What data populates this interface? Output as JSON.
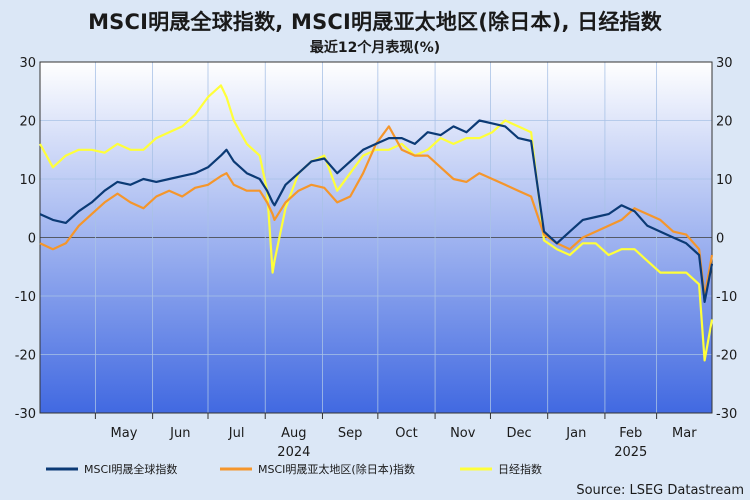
{
  "title": "MSCI明晟全球指数, MSCI明晟亚太地区(除日本), 日经指数",
  "subtitle": "最近12个月表现(%)",
  "source": "Source: LSEG Datastream",
  "colors": {
    "background": "#dbe7f6",
    "plot_top": "#ffffff",
    "plot_bottom": "#4169e1",
    "global": "#0b3a75",
    "apac": "#f5962b",
    "nikkei": "#ffff3a"
  },
  "chart_data": {
    "type": "line",
    "title": "MSCI明晟全球指数, MSCI明晟亚太地区(除日本), 日经指数",
    "subtitle": "最近12个月表现(%)",
    "ylim": [
      -30,
      30
    ],
    "yticks": [
      -30,
      -20,
      -10,
      0,
      10,
      20,
      30
    ],
    "ytick_labels": [
      "-30",
      "-20",
      "-10",
      "0",
      "10",
      "20",
      "30"
    ],
    "grid": true,
    "legend_position": "bottom",
    "x_range": [
      "2024-04-01",
      "2025-03-31"
    ],
    "month_labels": [
      "May",
      "Jun",
      "Jul",
      "Aug",
      "Sep",
      "Oct",
      "Nov",
      "Dec",
      "Jan",
      "Feb",
      "Mar"
    ],
    "year_labels": [
      "2024",
      "2025"
    ],
    "x": [
      "2024-04-01",
      "2024-04-08",
      "2024-04-15",
      "2024-04-22",
      "2024-04-29",
      "2024-05-06",
      "2024-05-13",
      "2024-05-20",
      "2024-05-27",
      "2024-06-03",
      "2024-06-10",
      "2024-06-17",
      "2024-06-24",
      "2024-07-01",
      "2024-07-08",
      "2024-07-11",
      "2024-07-15",
      "2024-07-22",
      "2024-07-29",
      "2024-08-02",
      "2024-08-05",
      "2024-08-06",
      "2024-08-12",
      "2024-08-19",
      "2024-08-26",
      "2024-09-02",
      "2024-09-09",
      "2024-09-16",
      "2024-09-23",
      "2024-09-30",
      "2024-10-07",
      "2024-10-14",
      "2024-10-21",
      "2024-10-28",
      "2024-11-04",
      "2024-11-11",
      "2024-11-18",
      "2024-11-25",
      "2024-12-02",
      "2024-12-09",
      "2024-12-16",
      "2024-12-23",
      "2024-12-30",
      "2025-01-06",
      "2025-01-13",
      "2025-01-20",
      "2025-01-27",
      "2025-02-03",
      "2025-02-10",
      "2025-02-17",
      "2025-02-24",
      "2025-03-03",
      "2025-03-10",
      "2025-03-17",
      "2025-03-24",
      "2025-03-27",
      "2025-03-31"
    ],
    "series": [
      {
        "name": "MSCI明晟全球指数",
        "values": [
          4,
          3,
          2.5,
          4.5,
          6,
          8,
          9.5,
          9,
          10,
          9.5,
          10,
          10.5,
          11,
          12,
          14,
          15,
          13,
          11,
          10,
          8,
          6,
          5.5,
          9,
          11,
          13,
          13.5,
          11,
          13,
          15,
          16,
          17,
          17,
          16,
          18,
          17.5,
          19,
          18,
          20,
          19.5,
          19,
          17,
          16.5,
          1,
          -1,
          1,
          3,
          3.5,
          4,
          5.5,
          4.5,
          2,
          1,
          0,
          -1,
          -3,
          -11,
          -4.5
        ]
      },
      {
        "name": "MSCI明晟亚太地区(除日本)指数",
        "values": [
          -1,
          -2,
          -1,
          2,
          4,
          6,
          7.5,
          6,
          5,
          7,
          8,
          7,
          8.5,
          9,
          10.5,
          11,
          9,
          8,
          8,
          6,
          4,
          3,
          6,
          8,
          9,
          8.5,
          6,
          7,
          11,
          16,
          19,
          15,
          14,
          14,
          12,
          10,
          9.5,
          11,
          10,
          9,
          8,
          7,
          0.5,
          -1,
          -2,
          0,
          1,
          2,
          3,
          5,
          4,
          3,
          1,
          0.5,
          -2,
          -10,
          -3
        ]
      },
      {
        "name": "日经指数",
        "values": [
          16,
          12,
          14,
          15,
          15,
          14.5,
          16,
          15,
          15,
          17,
          18,
          19,
          21,
          24,
          26,
          24,
          20,
          16,
          14,
          8,
          -6,
          -4,
          5,
          11,
          13,
          14,
          8,
          11,
          14,
          15,
          15,
          16,
          14,
          15,
          17,
          16,
          17,
          17,
          18,
          20,
          19,
          18,
          -0.5,
          -2,
          -3,
          -1,
          -1,
          -3,
          -2,
          -2,
          -4,
          -6,
          -6,
          -6,
          -8,
          -21,
          -14
        ]
      }
    ]
  }
}
